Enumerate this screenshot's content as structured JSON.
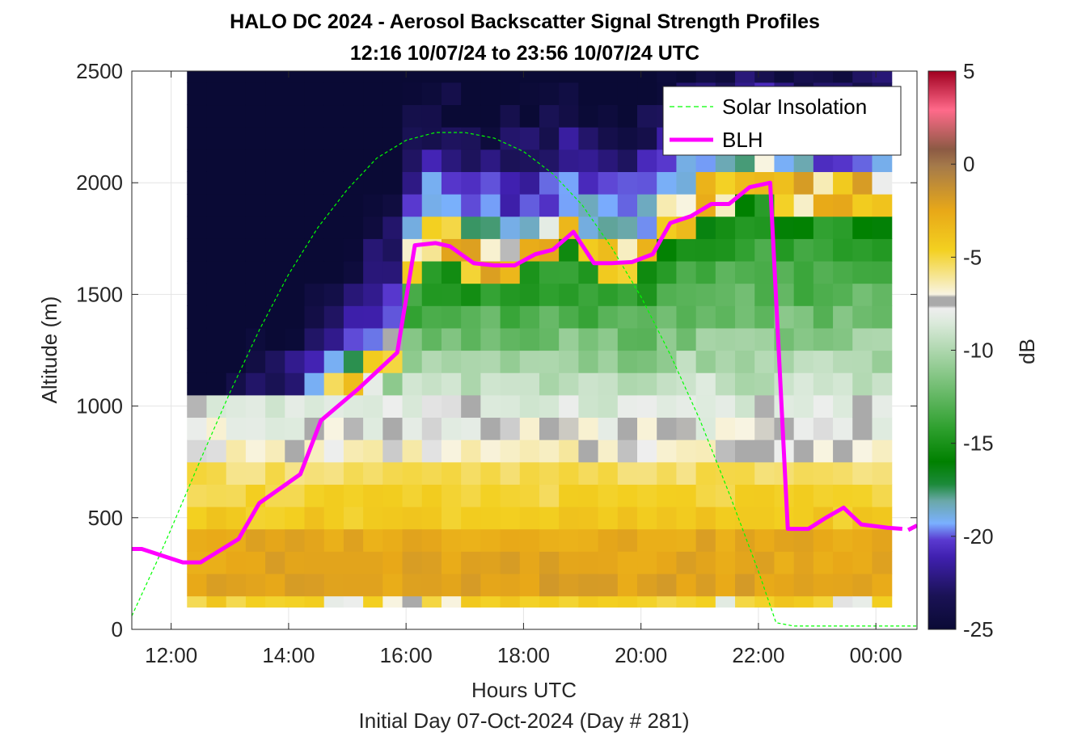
{
  "chart_data": {
    "type": "heatmap",
    "title": "HALO DC 2024 - Aerosol Backscatter Signal Strength Profiles",
    "subtitle": "12:16 10/07/24 to 23:56 10/07/24  UTC",
    "xlabel": "Hours UTC",
    "xlabel2": "Initial Day 07-Oct-2024 (Day # 281)",
    "ylabel": "Altitude (m)",
    "colorbar_label": "dB",
    "xlim": [
      11.33,
      24.7
    ],
    "ylim": [
      0,
      2500
    ],
    "x_ticks": [
      {
        "value": 12,
        "label": "12:00"
      },
      {
        "value": 14,
        "label": "14:00"
      },
      {
        "value": 16,
        "label": "16:00"
      },
      {
        "value": 18,
        "label": "18:00"
      },
      {
        "value": 20,
        "label": "20:00"
      },
      {
        "value": 22,
        "label": "22:00"
      },
      {
        "value": 24,
        "label": "00:00"
      }
    ],
    "y_ticks": [
      {
        "value": 0,
        "label": "0"
      },
      {
        "value": 500,
        "label": "500"
      },
      {
        "value": 1000,
        "label": "1000"
      },
      {
        "value": 1500,
        "label": "1500"
      },
      {
        "value": 2000,
        "label": "2000"
      },
      {
        "value": 2500,
        "label": "2500"
      }
    ],
    "colorbar_ticks": [
      {
        "value": 5,
        "label": "5"
      },
      {
        "value": 0,
        "label": "0"
      },
      {
        "value": -5,
        "label": "-5"
      },
      {
        "value": -10,
        "label": "-10"
      },
      {
        "value": -15,
        "label": "-15"
      },
      {
        "value": -20,
        "label": "-20"
      },
      {
        "value": -25,
        "label": "-25"
      }
    ],
    "clim": [
      -25,
      5
    ],
    "grid": true,
    "legend_position": "top-right",
    "heatmap": {
      "x_start": 12.27,
      "x_step": 0.3333,
      "x_count": 36,
      "y_bins": [
        {
          "bottom": 100,
          "top": 150
        },
        {
          "bottom": 150,
          "top": 250
        },
        {
          "bottom": 250,
          "top": 350
        },
        {
          "bottom": 350,
          "top": 450
        },
        {
          "bottom": 450,
          "top": 550
        },
        {
          "bottom": 550,
          "top": 650
        },
        {
          "bottom": 650,
          "top": 750
        },
        {
          "bottom": 750,
          "top": 850
        },
        {
          "bottom": 850,
          "top": 950
        },
        {
          "bottom": 950,
          "top": 1050
        },
        {
          "bottom": 1050,
          "top": 1150
        },
        {
          "bottom": 1150,
          "top": 1250
        },
        {
          "bottom": 1250,
          "top": 1350
        },
        {
          "bottom": 1350,
          "top": 1450
        },
        {
          "bottom": 1450,
          "top": 1550
        },
        {
          "bottom": 1550,
          "top": 1650
        },
        {
          "bottom": 1650,
          "top": 1750
        },
        {
          "bottom": 1750,
          "top": 1850
        },
        {
          "bottom": 1850,
          "top": 1950
        },
        {
          "bottom": 1950,
          "top": 2050
        },
        {
          "bottom": 2050,
          "top": 2150
        },
        {
          "bottom": 2150,
          "top": 2250
        },
        {
          "bottom": 2250,
          "top": 2350
        },
        {
          "bottom": 2350,
          "top": 2450
        },
        {
          "bottom": 2450,
          "top": 2500
        }
      ]
    },
    "series": [
      {
        "name": "Solar Insolation",
        "type": "line",
        "style": "dashed",
        "color": "#00ff00",
        "x": [
          11.33,
          11.75,
          12.0,
          12.5,
          13.0,
          13.5,
          14.0,
          14.5,
          15.0,
          15.5,
          16.0,
          16.5,
          17.0,
          17.5,
          18.0,
          18.5,
          19.0,
          19.5,
          20.0,
          20.5,
          21.0,
          21.5,
          22.0,
          22.3,
          22.6,
          23.0,
          23.5,
          24.0,
          24.5,
          24.7
        ],
        "y": [
          60,
          300,
          450,
          760,
          1060,
          1340,
          1590,
          1800,
          1970,
          2110,
          2190,
          2225,
          2225,
          2200,
          2140,
          2040,
          1900,
          1710,
          1490,
          1230,
          940,
          610,
          260,
          30,
          15,
          15,
          15,
          15,
          15,
          15
        ]
      },
      {
        "name": "BLH",
        "type": "line",
        "style": "solid",
        "color": "#ff00ff",
        "segments": [
          {
            "x": [
              11.33,
              11.5,
              12.2,
              12.5,
              13.15,
              13.5,
              14.2,
              14.55,
              15.2,
              15.85,
              16.15,
              16.5,
              16.75,
              17.15,
              17.5,
              17.85,
              18.2,
              18.5,
              18.85,
              19.2,
              19.5,
              19.85,
              20.2,
              20.5,
              20.85,
              21.2,
              21.5,
              21.85,
              22.2,
              22.5,
              22.85,
              23.15,
              23.45,
              23.75,
              24.2,
              24.45
            ],
            "y": [
              360,
              360,
              300,
              300,
              405,
              565,
              695,
              935,
              1080,
              1240,
              1720,
              1730,
              1715,
              1640,
              1630,
              1630,
              1680,
              1700,
              1780,
              1640,
              1640,
              1645,
              1680,
              1820,
              1850,
              1905,
              1905,
              1980,
              2000,
              450,
              450,
              500,
              545,
              470,
              455,
              450
            ]
          },
          {
            "x": [
              24.55,
              24.7
            ],
            "y": [
              445,
              465
            ]
          }
        ]
      }
    ]
  }
}
